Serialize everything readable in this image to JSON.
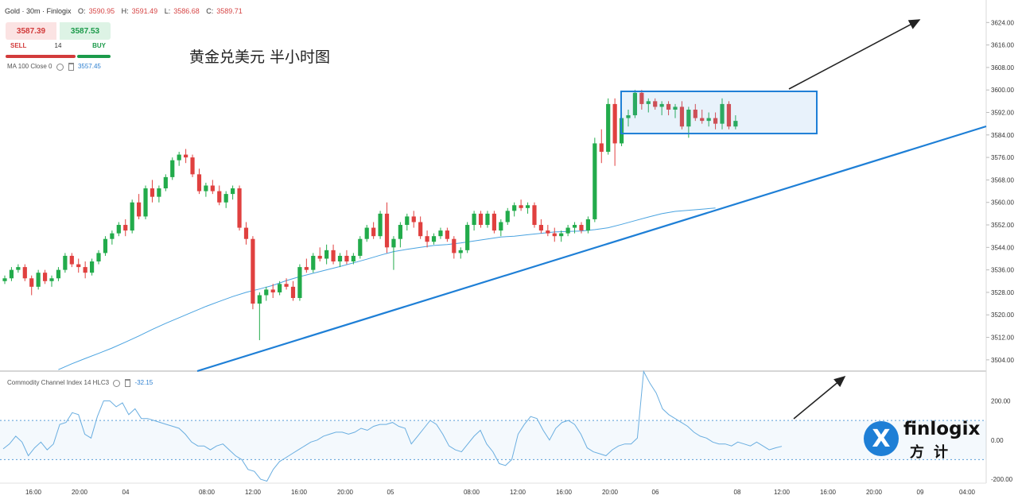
{
  "header": {
    "symbol": "Gold · 30m · Finlogix",
    "open_label": "O:",
    "open": "3590.95",
    "high_label": "H:",
    "high": "3591.49",
    "low_label": "L:",
    "low": "3586.68",
    "close_label": "C:",
    "close": "3589.71"
  },
  "trade": {
    "sell_price": "3587.39",
    "buy_price": "3587.53",
    "sell_label": "SELL",
    "quantity": "14",
    "buy_label": "BUY"
  },
  "indicators": {
    "ma_label": "MA 100 Close 0",
    "ma_value": "3557.45",
    "cci_label": "Commodity Channel Index 14 HLC3",
    "cci_value": "-32.15"
  },
  "annotation_title": "黄金兑美元 半小时图",
  "logo": {
    "word": "finlogix",
    "chinese": "方计",
    "mark": "X"
  },
  "colors": {
    "up": "#22ab4b",
    "down": "#e0403f",
    "ma": "#4aa3e0",
    "trend": "#1e7fd6",
    "cci": "#6aaee0"
  },
  "chart_data": [
    {
      "type": "candlestick",
      "ylim": [
        3500,
        3632
      ],
      "y_ticks": [
        "3624.00",
        "3616.00",
        "3608.00",
        "3600.00",
        "3592.00",
        "3584.00",
        "3576.00",
        "3568.00",
        "3560.00",
        "3552.00",
        "3544.00",
        "3536.00",
        "3528.00",
        "3520.00",
        "3512.00",
        "3504.00"
      ],
      "x_ticks": [
        "16:00",
        "20:00",
        "04",
        "08:00",
        "12:00",
        "16:00",
        "20:00",
        "05",
        "08:00",
        "12:00",
        "16:00",
        "20:00",
        "06",
        "08",
        "12:00",
        "16:00",
        "20:00",
        "09",
        "04:00"
      ],
      "candles": [
        [
          3532,
          3534,
          3531,
          3533
        ],
        [
          3533,
          3537,
          3532,
          3536
        ],
        [
          3536,
          3538,
          3535,
          3537
        ],
        [
          3537,
          3538,
          3532,
          3533
        ],
        [
          3533,
          3534,
          3527,
          3530
        ],
        [
          3530,
          3536,
          3529,
          3535
        ],
        [
          3535,
          3536,
          3531,
          3532
        ],
        [
          3532,
          3534,
          3530,
          3533
        ],
        [
          3533,
          3537,
          3532,
          3536
        ],
        [
          3536,
          3542,
          3535,
          3541
        ],
        [
          3541,
          3542,
          3537,
          3538
        ],
        [
          3538,
          3540,
          3535,
          3537
        ],
        [
          3537,
          3539,
          3533,
          3535
        ],
        [
          3535,
          3540,
          3534,
          3539
        ],
        [
          3539,
          3543,
          3538,
          3542
        ],
        [
          3542,
          3548,
          3541,
          3547
        ],
        [
          3547,
          3550,
          3545,
          3549
        ],
        [
          3549,
          3553,
          3548,
          3552
        ],
        [
          3552,
          3554,
          3548,
          3550
        ],
        [
          3550,
          3561,
          3549,
          3560
        ],
        [
          3560,
          3563,
          3554,
          3555
        ],
        [
          3555,
          3566,
          3554,
          3565
        ],
        [
          3565,
          3568,
          3560,
          3562
        ],
        [
          3562,
          3566,
          3560,
          3565
        ],
        [
          3565,
          3570,
          3564,
          3569
        ],
        [
          3569,
          3576,
          3568,
          3575
        ],
        [
          3575,
          3578,
          3573,
          3577
        ],
        [
          3577,
          3579,
          3574,
          3576
        ],
        [
          3576,
          3577,
          3569,
          3570
        ],
        [
          3570,
          3572,
          3563,
          3564
        ],
        [
          3564,
          3567,
          3562,
          3566
        ],
        [
          3566,
          3568,
          3563,
          3564
        ],
        [
          3564,
          3566,
          3559,
          3560
        ],
        [
          3560,
          3564,
          3558,
          3563
        ],
        [
          3563,
          3566,
          3561,
          3565
        ],
        [
          3565,
          3566,
          3550,
          3551
        ],
        [
          3551,
          3553,
          3545,
          3547
        ],
        [
          3547,
          3548,
          3522,
          3524
        ],
        [
          3524,
          3528,
          3511,
          3527
        ],
        [
          3527,
          3530,
          3525,
          3529
        ],
        [
          3529,
          3531,
          3526,
          3528
        ],
        [
          3528,
          3532,
          3527,
          3531
        ],
        [
          3531,
          3533,
          3529,
          3530
        ],
        [
          3530,
          3532,
          3525,
          3526
        ],
        [
          3526,
          3538,
          3525,
          3537
        ],
        [
          3537,
          3540,
          3535,
          3536
        ],
        [
          3536,
          3542,
          3535,
          3541
        ],
        [
          3541,
          3544,
          3539,
          3540
        ],
        [
          3540,
          3545,
          3538,
          3543
        ],
        [
          3543,
          3545,
          3538,
          3539
        ],
        [
          3539,
          3542,
          3537,
          3541
        ],
        [
          3541,
          3543,
          3538,
          3539
        ],
        [
          3539,
          3542,
          3538,
          3541
        ],
        [
          3541,
          3548,
          3540,
          3547
        ],
        [
          3547,
          3552,
          3546,
          3551
        ],
        [
          3551,
          3553,
          3547,
          3548
        ],
        [
          3548,
          3557,
          3547,
          3556
        ],
        [
          3556,
          3560,
          3542,
          3544
        ],
        [
          3544,
          3548,
          3536,
          3547
        ],
        [
          3547,
          3553,
          3544,
          3552
        ],
        [
          3552,
          3556,
          3550,
          3555
        ],
        [
          3555,
          3557,
          3551,
          3553
        ],
        [
          3553,
          3555,
          3547,
          3548
        ],
        [
          3548,
          3550,
          3544,
          3546
        ],
        [
          3546,
          3549,
          3545,
          3548
        ],
        [
          3548,
          3551,
          3547,
          3550
        ],
        [
          3550,
          3551,
          3546,
          3547
        ],
        [
          3547,
          3548,
          3540,
          3542
        ],
        [
          3542,
          3544,
          3540,
          3543
        ],
        [
          3543,
          3553,
          3542,
          3552
        ],
        [
          3552,
          3557,
          3550,
          3556
        ],
        [
          3556,
          3557,
          3551,
          3552
        ],
        [
          3552,
          3557,
          3551,
          3556
        ],
        [
          3556,
          3557,
          3549,
          3550
        ],
        [
          3550,
          3554,
          3548,
          3553
        ],
        [
          3553,
          3558,
          3552,
          3557
        ],
        [
          3557,
          3560,
          3555,
          3559
        ],
        [
          3559,
          3561,
          3557,
          3558
        ],
        [
          3558,
          3560,
          3556,
          3559
        ],
        [
          3559,
          3560,
          3551,
          3552
        ],
        [
          3552,
          3554,
          3549,
          3550
        ],
        [
          3550,
          3552,
          3548,
          3549
        ],
        [
          3549,
          3551,
          3546,
          3548
        ],
        [
          3548,
          3550,
          3546,
          3549
        ],
        [
          3549,
          3552,
          3548,
          3551
        ],
        [
          3551,
          3553,
          3549,
          3552
        ],
        [
          3552,
          3553,
          3549,
          3550
        ],
        [
          3550,
          3555,
          3549,
          3554
        ],
        [
          3554,
          3583,
          3553,
          3581
        ],
        [
          3581,
          3586,
          3574,
          3578
        ],
        [
          3578,
          3597,
          3577,
          3595
        ],
        [
          3595,
          3597,
          3573,
          3581
        ],
        [
          3581,
          3592,
          3580,
          3590
        ],
        [
          3590,
          3593,
          3587,
          3591
        ],
        [
          3591,
          3600,
          3590,
          3599
        ],
        [
          3599,
          3600,
          3593,
          3595
        ],
        [
          3595,
          3597,
          3592,
          3596
        ],
        [
          3596,
          3597,
          3593,
          3594
        ],
        [
          3594,
          3596,
          3591,
          3595
        ],
        [
          3595,
          3596,
          3591,
          3593
        ],
        [
          3593,
          3595,
          3590,
          3594
        ],
        [
          3594,
          3596,
          3586,
          3587
        ],
        [
          3587,
          3594,
          3583,
          3593
        ],
        [
          3593,
          3595,
          3589,
          3590
        ],
        [
          3590,
          3593,
          3588,
          3589
        ],
        [
          3589,
          3592,
          3587,
          3590
        ],
        [
          3590,
          3592,
          3586,
          3588
        ],
        [
          3588,
          3597,
          3586,
          3595
        ],
        [
          3595,
          3596,
          3586,
          3587
        ],
        [
          3587,
          3591,
          3586,
          3589
        ]
      ],
      "ma100": [
        3500.5,
        3502.6,
        3504.5,
        3506.3,
        3508.2,
        3510.3,
        3512.5,
        3514.8,
        3517.0,
        3519.0,
        3521.0,
        3523.0,
        3524.8,
        3526.5,
        3528.0,
        3529.2,
        3530.5,
        3532.2,
        3533.6,
        3534.8,
        3536.0,
        3537.2,
        3538.5,
        3539.8,
        3541.2,
        3542.5,
        3543.3,
        3544.0,
        3544.7,
        3545.0,
        3545.6,
        3546.3,
        3547.0,
        3547.7,
        3548.0,
        3548.5,
        3549.0,
        3549.5,
        3549.7,
        3549.8,
        3550.3,
        3551.0,
        3552.2,
        3553.5,
        3554.8,
        3556.0,
        3556.8,
        3557.2,
        3557.6,
        3558.0
      ],
      "ma_start_index": 8,
      "ma_step": 2,
      "annotations": {
        "rect_y": [
          3584.5,
          3599.5
        ],
        "rect_index": [
          92,
          116
        ]
      }
    },
    {
      "type": "line",
      "name": "Commodity Channel Index",
      "ylim": [
        -220,
        340
      ],
      "y_ticks": [
        "200.00",
        "0.00",
        "-200.00"
      ],
      "bands": [
        100,
        -100
      ],
      "values": [
        -45,
        -20,
        20,
        -10,
        -80,
        -40,
        -10,
        -50,
        -20,
        80,
        90,
        140,
        130,
        30,
        10,
        120,
        200,
        200,
        170,
        190,
        130,
        160,
        110,
        110,
        100,
        90,
        80,
        70,
        60,
        30,
        -10,
        -30,
        -30,
        -50,
        -30,
        -20,
        -50,
        -80,
        -100,
        -150,
        -160,
        -200,
        -210,
        -150,
        -110,
        -90,
        -70,
        -50,
        -30,
        -10,
        0,
        20,
        30,
        40,
        40,
        30,
        40,
        60,
        50,
        70,
        80,
        80,
        90,
        70,
        60,
        -20,
        20,
        60,
        100,
        80,
        30,
        -30,
        -50,
        -60,
        -20,
        20,
        50,
        -20,
        -60,
        -120,
        -130,
        -100,
        30,
        80,
        120,
        110,
        50,
        0,
        60,
        90,
        100,
        80,
        30,
        -40,
        -60,
        -70,
        -80,
        -50,
        -30,
        -20,
        -20,
        10,
        350,
        290,
        240,
        160,
        130,
        110,
        90,
        70,
        40,
        20,
        10,
        -10,
        -20,
        -20,
        -30,
        -10,
        -20,
        -30,
        -10,
        -30,
        -50,
        -40,
        -32
      ]
    }
  ]
}
